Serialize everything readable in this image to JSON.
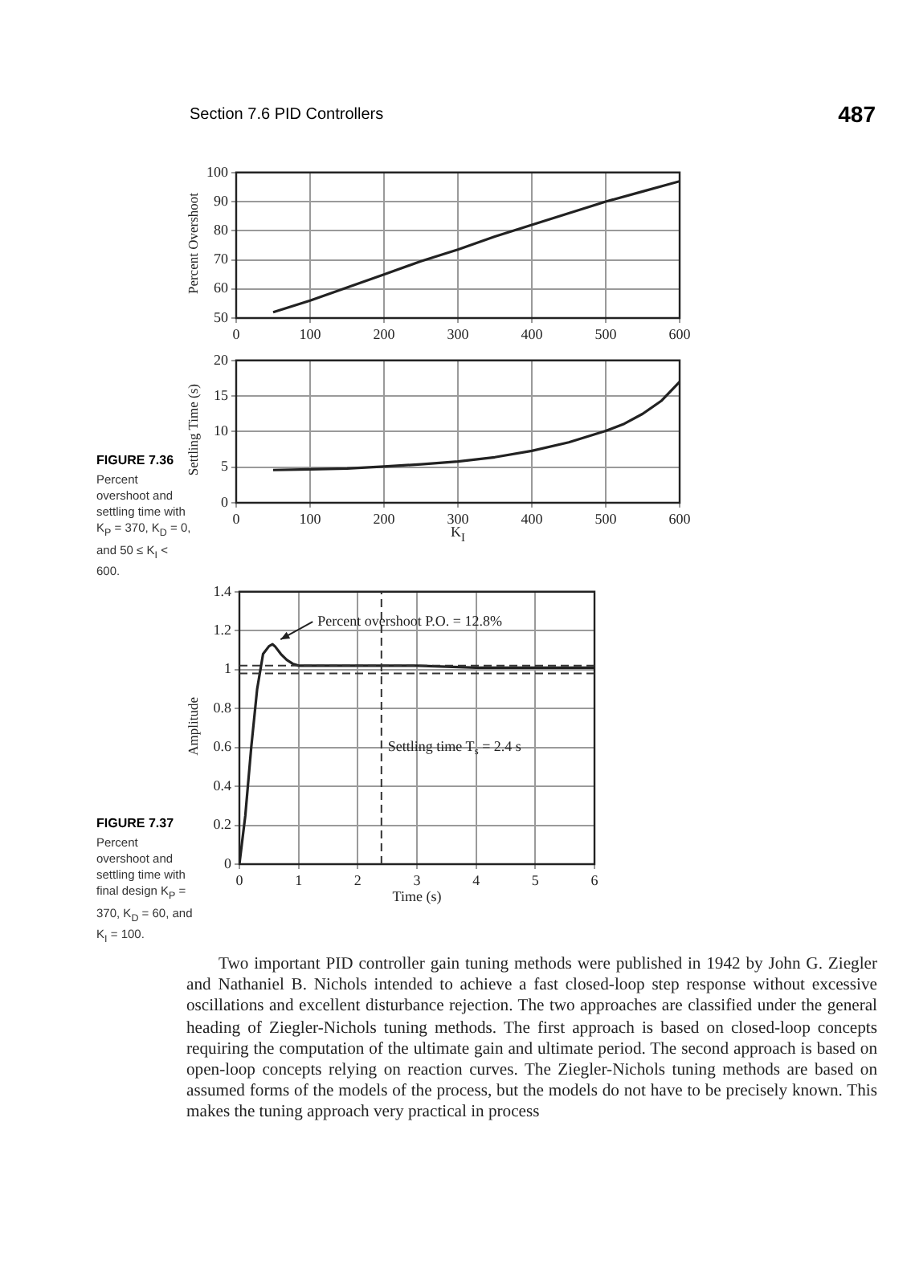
{
  "chart_data": [
    {
      "type": "line",
      "ylabel": "Percent Overshoot",
      "x": [
        50,
        100,
        150,
        200,
        250,
        300,
        350,
        400,
        450,
        500,
        550,
        600
      ],
      "series": [
        {
          "color": "#222222",
          "values": [
            52,
            56,
            60.5,
            65,
            69.5,
            73.5,
            78,
            82,
            86,
            90,
            93.5,
            97
          ]
        }
      ],
      "xlim": [
        0,
        600
      ],
      "xticks": [
        0,
        100,
        200,
        300,
        400,
        500,
        600
      ],
      "ylim": [
        50,
        100
      ],
      "yticks": [
        50,
        60,
        70,
        80,
        90,
        100
      ],
      "grid": true,
      "marker": "none",
      "annotations": [
        "Section 7.6 PID Controllers",
        "487",
        "FIGURE 7.36",
        "Percent overshoot and settling time with K$_{P}$ = 370, K$_{D}$ = 0, and 50 ≤ K$_{I}$ < 600."
      ]
    },
    {
      "type": "line",
      "xlabel": "K$_{I}$",
      "ylabel": "Settling Time (s)",
      "x": [
        50,
        100,
        150,
        200,
        250,
        300,
        350,
        400,
        450,
        500,
        525,
        550,
        575,
        600
      ],
      "series": [
        {
          "color": "#222222",
          "values": [
            4.6,
            4.7,
            4.8,
            5.1,
            5.4,
            5.8,
            6.4,
            7.3,
            8.5,
            10.1,
            11.1,
            12.5,
            14.3,
            17
          ]
        }
      ],
      "xlim": [
        0,
        600
      ],
      "xticks": [
        0,
        100,
        200,
        300,
        400,
        500,
        600
      ],
      "ylim": [
        0,
        20
      ],
      "yticks": [
        0,
        5,
        10,
        15,
        20
      ],
      "grid": true,
      "marker": "none"
    },
    {
      "type": "line",
      "xlabel": "Time (s)",
      "ylabel": "Amplitude",
      "x": [
        0,
        0.1,
        0.2,
        0.3,
        0.4,
        0.5,
        0.56,
        0.6,
        0.7,
        0.8,
        0.9,
        1,
        1.5,
        2,
        2.4,
        3,
        4,
        5,
        6
      ],
      "series": [
        {
          "color": "#222222",
          "values": [
            0,
            0.25,
            0.6,
            0.9,
            1.08,
            1.12,
            1.13,
            1.12,
            1.08,
            1.05,
            1.03,
            1.02,
            1.02,
            1.02,
            1.02,
            1.02,
            1.01,
            1.01,
            1.01
          ]
        }
      ],
      "xlim": [
        0,
        6
      ],
      "xticks": [
        0,
        1,
        2,
        3,
        4,
        5,
        6
      ],
      "ylim": [
        0,
        1.4
      ],
      "yticks": [
        0,
        0.2,
        0.4,
        0.6,
        0.8,
        1,
        1.2,
        1.4
      ],
      "grid": true,
      "marker": "none",
      "ref_lines": [
        {
          "axis": "y",
          "value": 1.02,
          "line_style": "dashed",
          "color": "#333333"
        },
        {
          "axis": "y",
          "value": 0.98,
          "line_style": "dashed",
          "color": "#333333"
        },
        {
          "axis": "x",
          "value": 2.4,
          "line_style": "dashed",
          "color": "#333333"
        }
      ],
      "annotations": [
        {
          "text": "Percent overshoot P.O. = 12.8%",
          "x": 0.56,
          "y": 1.13
        },
        {
          "text": "Settling time T$_{s}$ = 2.4 s",
          "x": 2.4,
          "y": 0.6
        },
        "FIGURE 7.37",
        "Percent overshoot and settling time with final design K$_{P}$ = 370, K$_{D}$ = 60, and K$_{I}$ = 100.",
        "Two important PID controller gain tuning methods were published in 1942 by John G. Ziegler and Nathaniel B. Nichols intended to achieve a fast closed-loop step response without excessive oscillations and excellent disturbance rejection. The two approaches are classified under the general heading of Ziegler-Nichols tuning methods. The first approach is based on closed-loop concepts requiring the computation of the ultimate gain and ultimate period. The second approach is based on open-loop concepts relying on reaction curves. The Ziegler-Nichols tuning methods are based on assumed forms of the models of the process, but the models do not have to be precisely known. This makes the tuning approach very practical in process"
      ]
    }
  ]
}
